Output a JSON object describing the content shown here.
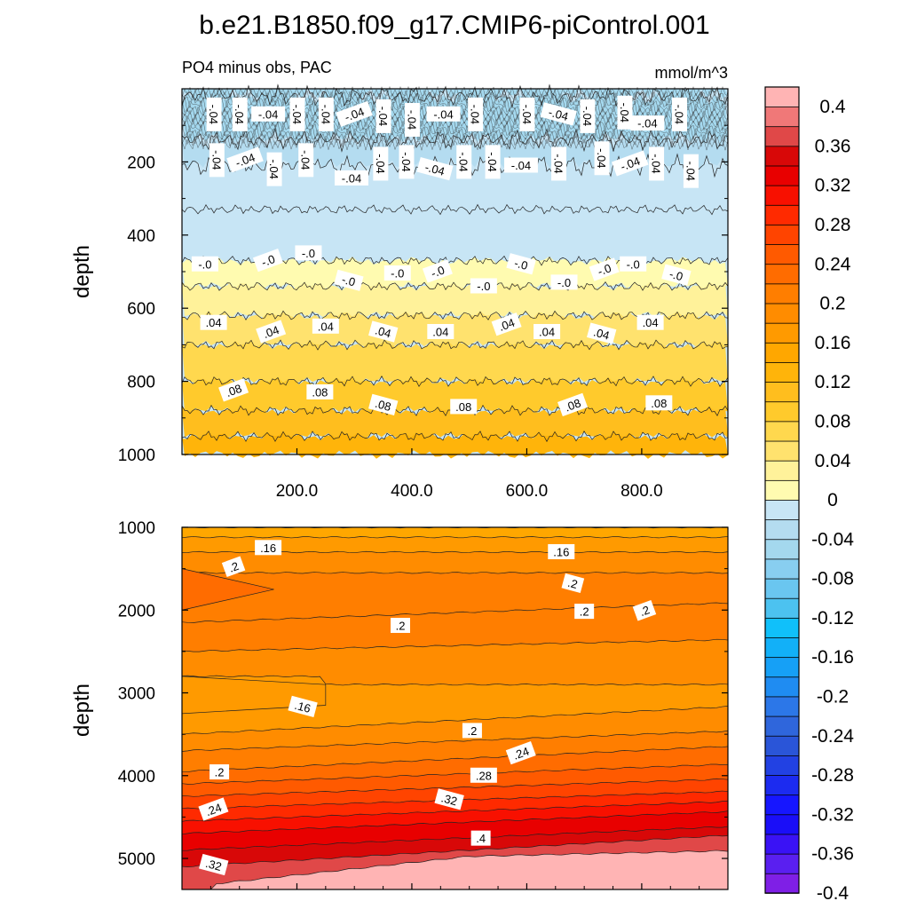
{
  "title": "b.e21.B1850.f09_g17.CMIP6-piControl.001",
  "chart_data": {
    "type": "heatmap",
    "variable_label": "PO4 minus obs, PAC",
    "units": "mmol/m^3",
    "colorbar": {
      "levels": [
        -0.4,
        -0.38,
        -0.36,
        -0.34,
        -0.32,
        -0.3,
        -0.28,
        -0.26,
        -0.24,
        -0.22,
        -0.2,
        -0.18,
        -0.16,
        -0.14,
        -0.12,
        -0.1,
        -0.08,
        -0.06,
        -0.04,
        -0.02,
        0,
        0.02,
        0.04,
        0.06,
        0.08,
        0.1,
        0.12,
        0.14,
        0.16,
        0.18,
        0.2,
        0.22,
        0.24,
        0.26,
        0.28,
        0.3,
        0.32,
        0.34,
        0.36,
        0.38,
        0.4
      ],
      "colors": [
        "#7f1fe6",
        "#5a1ff0",
        "#3a12f5",
        "#1a0ef8",
        "#1616ff",
        "#1c2bf0",
        "#2241e3",
        "#2a55d8",
        "#2f66dc",
        "#2c77e8",
        "#1f8cf2",
        "#16a0f6",
        "#12b0f8",
        "#10c0fa",
        "#4cc2f0",
        "#6ac6f0",
        "#88cef0",
        "#a4d8ee",
        "#b4dcf0",
        "#c7e5f5",
        "#fffbb0",
        "#fff29a",
        "#ffe26e",
        "#ffd84e",
        "#ffca2c",
        "#ffbe1e",
        "#ffb40a",
        "#ffa700",
        "#ff9a00",
        "#ff8c00",
        "#ff7e00",
        "#ff6c00",
        "#ff5a00",
        "#ff4400",
        "#ff2a00",
        "#f81000",
        "#e80000",
        "#d80808",
        "#e04848",
        "#f07878",
        "#ffb4b4"
      ],
      "tick_labels": [
        "0.4",
        "0.36",
        "0.32",
        "0.28",
        "0.24",
        "0.2",
        "0.16",
        "0.12",
        "0.08",
        "0.04",
        "0",
        "-0.04",
        "-0.08",
        "-0.12",
        "-0.16",
        "-0.2",
        "-0.24",
        "-0.28",
        "-0.32",
        "-0.36",
        "-0.4"
      ]
    },
    "panels": [
      {
        "name": "upper",
        "x_ticks": [
          "200.0",
          "400.0",
          "600.0",
          "800.0"
        ],
        "x_tick_values": [
          200,
          400,
          600,
          800
        ],
        "xlim": [
          0,
          950
        ],
        "ylabel": "depth",
        "y_ticks": [
          "200",
          "400",
          "600",
          "800",
          "1000"
        ],
        "y_tick_values": [
          200,
          400,
          600,
          800,
          1000
        ],
        "ylim": [
          0,
          1000
        ],
        "bands": [
          {
            "depth": 20,
            "value": -0.06
          },
          {
            "depth": 140,
            "value": -0.05
          },
          {
            "depth": 210,
            "value": -0.03
          },
          {
            "depth": 330,
            "value": -0.02
          },
          {
            "depth": 470,
            "value": -0.01
          },
          {
            "depth": 540,
            "value": 0.01
          },
          {
            "depth": 620,
            "value": 0.03
          },
          {
            "depth": 700,
            "value": 0.05
          },
          {
            "depth": 800,
            "value": 0.07
          },
          {
            "depth": 880,
            "value": 0.09
          },
          {
            "depth": 950,
            "value": 0.11
          },
          {
            "depth": 1000,
            "value": 0.12
          }
        ],
        "contour_labels": [
          {
            "text": "-.04",
            "x": 55,
            "depth": 70
          },
          {
            "text": "-.04",
            "x": 100,
            "depth": 70
          },
          {
            "text": "-.04",
            "x": 150,
            "depth": 70
          },
          {
            "text": "-.04",
            "x": 200,
            "depth": 70
          },
          {
            "text": "-.04",
            "x": 250,
            "depth": 70
          },
          {
            "text": "-.04",
            "x": 300,
            "depth": 70
          },
          {
            "text": "-.04",
            "x": 350,
            "depth": 75
          },
          {
            "text": "-.04",
            "x": 400,
            "depth": 85
          },
          {
            "text": "-.04",
            "x": 455,
            "depth": 70
          },
          {
            "text": "-.04",
            "x": 510,
            "depth": 70
          },
          {
            "text": "-.04",
            "x": 600,
            "depth": 70
          },
          {
            "text": "-.04",
            "x": 655,
            "depth": 70
          },
          {
            "text": "-.04",
            "x": 705,
            "depth": 75
          },
          {
            "text": "-.04",
            "x": 770,
            "depth": 65
          },
          {
            "text": "-.04",
            "x": 810,
            "depth": 95
          },
          {
            "text": "-.04",
            "x": 865,
            "depth": 70
          },
          {
            "text": "-.04",
            "x": 60,
            "depth": 195
          },
          {
            "text": "-.04",
            "x": 110,
            "depth": 195
          },
          {
            "text": "-.04",
            "x": 160,
            "depth": 220
          },
          {
            "text": "-.04",
            "x": 215,
            "depth": 195
          },
          {
            "text": "-.04",
            "x": 295,
            "depth": 245
          },
          {
            "text": "-.04",
            "x": 345,
            "depth": 205
          },
          {
            "text": "-.04",
            "x": 390,
            "depth": 200
          },
          {
            "text": "-.04",
            "x": 440,
            "depth": 220
          },
          {
            "text": "-.04",
            "x": 490,
            "depth": 200
          },
          {
            "text": "-.04",
            "x": 540,
            "depth": 200
          },
          {
            "text": "-.04",
            "x": 590,
            "depth": 210
          },
          {
            "text": "-.04",
            "x": 655,
            "depth": 205
          },
          {
            "text": "-.04",
            "x": 730,
            "depth": 190
          },
          {
            "text": "-.04",
            "x": 780,
            "depth": 205
          },
          {
            "text": "-.04",
            "x": 825,
            "depth": 205
          },
          {
            "text": "-.04",
            "x": 885,
            "depth": 225
          },
          {
            "text": "-.0",
            "x": 40,
            "depth": 480
          },
          {
            "text": "-.0",
            "x": 150,
            "depth": 470
          },
          {
            "text": "-.0",
            "x": 220,
            "depth": 450
          },
          {
            "text": "-.0",
            "x": 290,
            "depth": 525
          },
          {
            "text": "-.0",
            "x": 375,
            "depth": 505
          },
          {
            "text": "-.0",
            "x": 445,
            "depth": 500
          },
          {
            "text": "-.0",
            "x": 525,
            "depth": 540
          },
          {
            "text": "-.0",
            "x": 590,
            "depth": 480
          },
          {
            "text": "-.0",
            "x": 665,
            "depth": 530
          },
          {
            "text": "-.0",
            "x": 735,
            "depth": 495
          },
          {
            "text": "-.0",
            "x": 785,
            "depth": 480
          },
          {
            "text": "-.0",
            "x": 860,
            "depth": 510
          },
          {
            "text": ".04",
            "x": 55,
            "depth": 640
          },
          {
            "text": ".04",
            "x": 155,
            "depth": 665
          },
          {
            "text": ".04",
            "x": 250,
            "depth": 650
          },
          {
            "text": ".04",
            "x": 350,
            "depth": 665
          },
          {
            "text": ".04",
            "x": 450,
            "depth": 665
          },
          {
            "text": ".04",
            "x": 565,
            "depth": 645
          },
          {
            "text": ".04",
            "x": 635,
            "depth": 665
          },
          {
            "text": ".04",
            "x": 730,
            "depth": 670
          },
          {
            "text": ".04",
            "x": 815,
            "depth": 640
          },
          {
            "text": ".08",
            "x": 90,
            "depth": 825
          },
          {
            "text": ".08",
            "x": 240,
            "depth": 830
          },
          {
            "text": ".08",
            "x": 350,
            "depth": 865
          },
          {
            "text": ".08",
            "x": 490,
            "depth": 870
          },
          {
            "text": ".08",
            "x": 680,
            "depth": 865
          },
          {
            "text": ".08",
            "x": 830,
            "depth": 860
          }
        ]
      },
      {
        "name": "lower",
        "x_ticks": [],
        "ylabel": "depth",
        "y_ticks": [
          "1000",
          "2000",
          "3000",
          "4000",
          "5000"
        ],
        "y_tick_values": [
          1000,
          2000,
          3000,
          4000,
          5000
        ],
        "ylim": [
          1000,
          5375
        ],
        "contour_labels": [
          {
            "text": ".16",
            "x": 150,
            "depth": 1250
          },
          {
            "text": ".2",
            "x": 90,
            "depth": 1480
          },
          {
            "text": ".16",
            "x": 660,
            "depth": 1300
          },
          {
            "text": ".2",
            "x": 680,
            "depth": 1680
          },
          {
            "text": ".2",
            "x": 700,
            "depth": 2020
          },
          {
            "text": ".2",
            "x": 805,
            "depth": 2010
          },
          {
            "text": ".2",
            "x": 380,
            "depth": 2190
          },
          {
            "text": ".16",
            "x": 210,
            "depth": 3170
          },
          {
            "text": ".2",
            "x": 505,
            "depth": 3460
          },
          {
            "text": ".24",
            "x": 590,
            "depth": 3730
          },
          {
            "text": ".28",
            "x": 525,
            "depth": 4000
          },
          {
            "text": ".32",
            "x": 465,
            "depth": 4290
          },
          {
            "text": ".2",
            "x": 65,
            "depth": 3960
          },
          {
            "text": ".24",
            "x": 55,
            "depth": 4410
          },
          {
            "text": ".4",
            "x": 520,
            "depth": 4760
          },
          {
            "text": ".32",
            "x": 55,
            "depth": 5080
          }
        ]
      }
    ]
  }
}
